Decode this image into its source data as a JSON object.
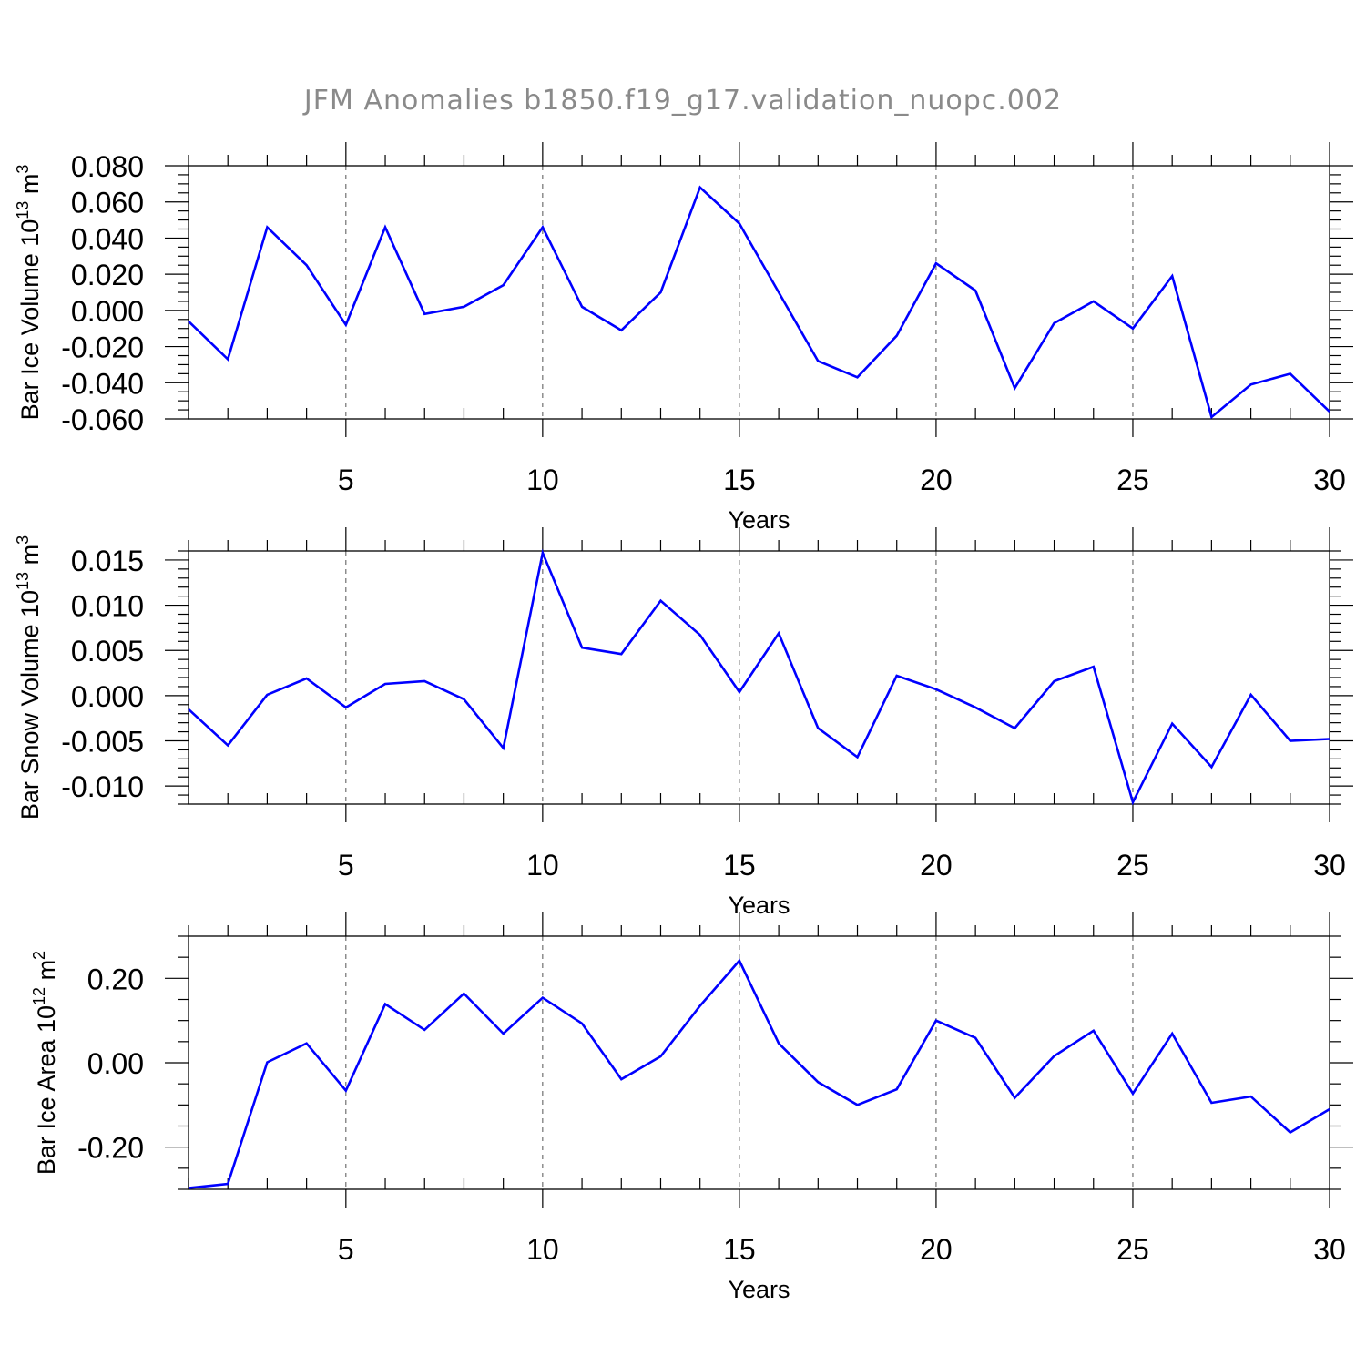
{
  "title": "JFM Anomalies b1850.f19_g17.validation_nuopc.002",
  "chart_data": [
    {
      "type": "line",
      "ylabel": {
        "prefix": "Bar Ice Volume 10",
        "exp": "13",
        "unit": " m",
        "unit_exp": "3"
      },
      "xlabel": "Years",
      "xlim": [
        1,
        30
      ],
      "ylim": [
        -0.06,
        0.08
      ],
      "xticks": [
        5,
        10,
        15,
        20,
        25,
        30
      ],
      "yticks": [
        -0.06,
        -0.04,
        -0.02,
        0.0,
        0.02,
        0.04,
        0.06,
        0.08
      ],
      "ytick_labels": [
        "-0.060",
        "-0.040",
        "-0.020",
        "0.000",
        "0.020",
        "0.040",
        "0.060",
        "0.080"
      ],
      "ytick_minor_step": 0.005,
      "grid": "vertical dashed at x ticks",
      "color": "#0000ff",
      "x": [
        1,
        2,
        3,
        4,
        5,
        6,
        7,
        8,
        9,
        10,
        11,
        12,
        13,
        14,
        15,
        16,
        17,
        18,
        19,
        20,
        21,
        22,
        23,
        24,
        25,
        26,
        27,
        28,
        29,
        30
      ],
      "values": [
        -0.006,
        -0.027,
        0.046,
        0.025,
        -0.008,
        0.046,
        -0.002,
        0.002,
        0.014,
        0.046,
        0.002,
        -0.011,
        0.01,
        0.068,
        0.048,
        0.01,
        -0.028,
        -0.037,
        -0.014,
        0.026,
        0.011,
        -0.043,
        -0.007,
        0.005,
        -0.01,
        0.019,
        -0.059,
        -0.041,
        -0.035,
        -0.056
      ]
    },
    {
      "type": "line",
      "ylabel": {
        "prefix": "Bar Snow Volume 10",
        "exp": "13",
        "unit": " m",
        "unit_exp": "3"
      },
      "xlabel": "Years",
      "xlim": [
        1,
        30
      ],
      "ylim": [
        -0.012,
        0.016
      ],
      "xticks": [
        5,
        10,
        15,
        20,
        25,
        30
      ],
      "yticks": [
        -0.01,
        -0.005,
        0.0,
        0.005,
        0.01,
        0.015
      ],
      "ytick_labels": [
        "-0.010",
        "-0.005",
        "0.000",
        "0.005",
        "0.010",
        "0.015"
      ],
      "ytick_minor_step": 0.001,
      "grid": "vertical dashed at x ticks",
      "color": "#0000ff",
      "x": [
        1,
        2,
        3,
        4,
        5,
        6,
        7,
        8,
        9,
        10,
        11,
        12,
        13,
        14,
        15,
        16,
        17,
        18,
        19,
        20,
        21,
        22,
        23,
        24,
        25,
        26,
        27,
        28,
        29,
        30
      ],
      "values": [
        -0.0015,
        -0.0055,
        0.0001,
        0.0019,
        -0.0013,
        0.0013,
        0.0016,
        -0.0004,
        -0.0058,
        0.0158,
        0.0053,
        0.0046,
        0.0105,
        0.0067,
        0.0004,
        0.0069,
        -0.0036,
        -0.0068,
        0.0022,
        0.0007,
        -0.0013,
        -0.0036,
        0.0016,
        0.0032,
        -0.0118,
        -0.0031,
        -0.0079,
        0.0001,
        -0.005,
        -0.0048
      ]
    },
    {
      "type": "line",
      "ylabel": {
        "prefix": "Bar Ice Area 10",
        "exp": "12",
        "unit": " m",
        "unit_exp": "2"
      },
      "xlabel": "Years",
      "xlim": [
        1,
        30
      ],
      "ylim": [
        -0.3,
        0.3
      ],
      "xticks": [
        5,
        10,
        15,
        20,
        25,
        30
      ],
      "yticks": [
        -0.2,
        0.0,
        0.2
      ],
      "ytick_labels": [
        "-0.20",
        "0.00",
        "0.20"
      ],
      "ytick_minor_step": 0.05,
      "grid": "vertical dashed at x ticks",
      "color": "#0000ff",
      "x": [
        1,
        2,
        3,
        4,
        5,
        6,
        7,
        8,
        9,
        10,
        11,
        12,
        13,
        14,
        15,
        16,
        17,
        18,
        19,
        20,
        21,
        22,
        23,
        24,
        25,
        26,
        27,
        28,
        29,
        30
      ],
      "values": [
        -0.297,
        -0.287,
        0.001,
        0.046,
        -0.066,
        0.139,
        0.078,
        0.164,
        0.069,
        0.154,
        0.093,
        -0.039,
        0.015,
        0.135,
        0.242,
        0.046,
        -0.046,
        -0.1,
        -0.063,
        0.1,
        0.059,
        -0.083,
        0.016,
        0.076,
        -0.073,
        0.069,
        -0.095,
        -0.08,
        -0.165,
        -0.11
      ]
    }
  ]
}
